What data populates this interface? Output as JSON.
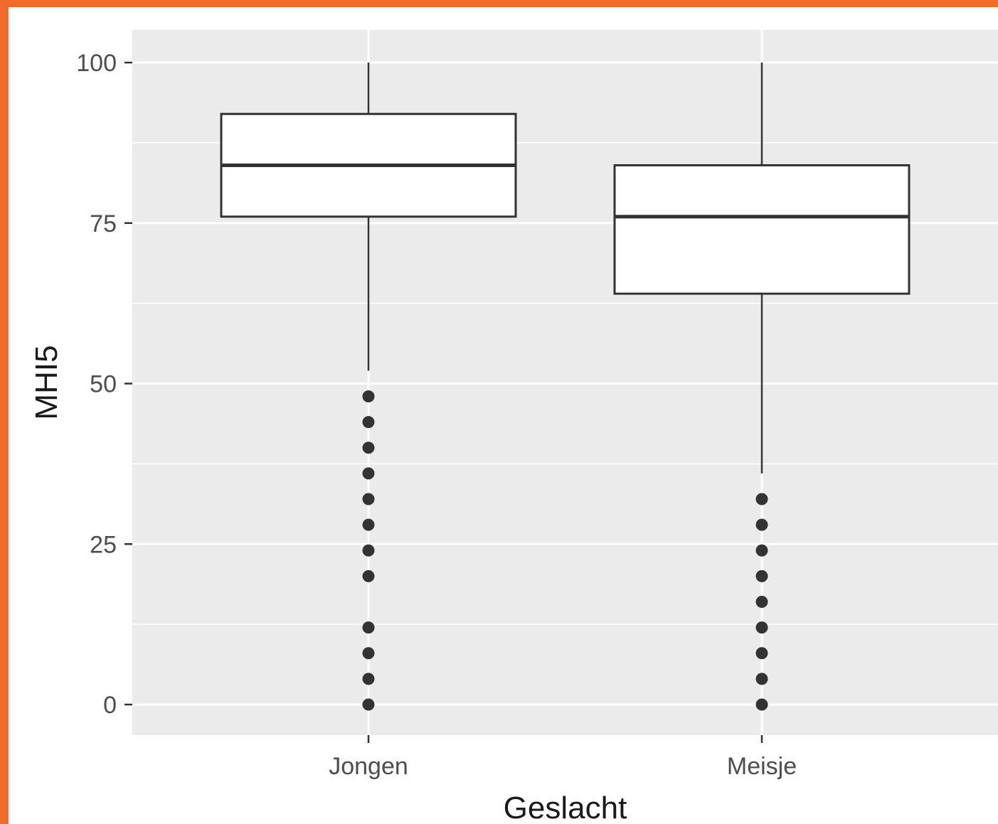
{
  "colors": {
    "frame": "#f26b2a",
    "panel": "#ebebeb",
    "grid": "#ffffff",
    "box_fill": "#ffffff",
    "box_stroke": "#333333",
    "outlier": "#333333",
    "tick": "#333333"
  },
  "chart_data": {
    "type": "boxplot",
    "title": "",
    "xlabel": "Geslacht",
    "ylabel": "MHI5",
    "ylim": [
      -5,
      105
    ],
    "yticks": [
      0,
      25,
      50,
      75,
      100
    ],
    "ytick_labels": [
      "0",
      "25",
      "50",
      "75",
      "100"
    ],
    "grid": true,
    "categories": [
      "Jongen",
      "Meisje"
    ],
    "boxes": [
      {
        "category": "Jongen",
        "whisker_low": 52,
        "q1": 76,
        "median": 84,
        "q3": 92,
        "whisker_high": 100,
        "outliers": [
          0,
          4,
          8,
          12,
          20,
          24,
          28,
          32,
          36,
          40,
          44,
          48
        ]
      },
      {
        "category": "Meisje",
        "whisker_low": 36,
        "q1": 64,
        "median": 76,
        "q3": 84,
        "whisker_high": 100,
        "outliers": [
          0,
          4,
          8,
          12,
          16,
          20,
          24,
          28,
          32
        ]
      }
    ]
  }
}
